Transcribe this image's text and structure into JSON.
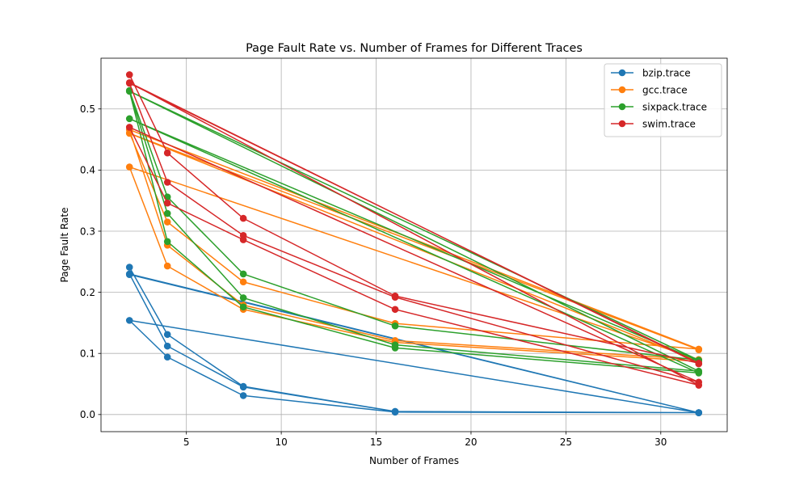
{
  "chart_data": {
    "type": "line",
    "title": "Page Fault Rate vs. Number of Frames for Different Traces",
    "xlabel": "Number of Frames",
    "ylabel": "Page Fault Rate",
    "xlim": [
      0.5,
      33.5
    ],
    "ylim": [
      -0.028,
      0.583
    ],
    "xticks": [
      5,
      10,
      15,
      20,
      25,
      30
    ],
    "xtick_labels": [
      "5",
      "10",
      "15",
      "20",
      "25",
      "30"
    ],
    "yticks": [
      0.0,
      0.1,
      0.2,
      0.3,
      0.4,
      0.5
    ],
    "ytick_labels": [
      "0.0",
      "0.1",
      "0.2",
      "0.3",
      "0.4",
      "0.5"
    ],
    "grid": true,
    "legend_position": "top-right",
    "series": [
      {
        "name": "bzip.trace",
        "color": "#1f77b4",
        "x": [
          2,
          4,
          8,
          16,
          32,
          2,
          4,
          8,
          16,
          32,
          2,
          4,
          8,
          16,
          32,
          2,
          32
        ],
        "y": [
          0.241,
          0.131,
          0.046,
          0.005,
          0.003,
          0.23,
          0.112,
          0.045,
          0.005,
          0.003,
          0.154,
          0.094,
          0.031,
          0.004,
          0.003,
          0.229,
          0.003
        ]
      },
      {
        "name": "gcc.trace",
        "color": "#ff7f0e",
        "x": [
          2,
          4,
          8,
          16,
          32,
          2,
          4,
          8,
          16,
          32,
          2,
          4,
          8,
          16,
          32,
          2,
          32
        ],
        "y": [
          0.461,
          0.315,
          0.217,
          0.149,
          0.107,
          0.466,
          0.277,
          0.179,
          0.121,
          0.09,
          0.405,
          0.243,
          0.172,
          0.118,
          0.087,
          0.46,
          0.106
        ]
      },
      {
        "name": "sixpack.trace",
        "color": "#2ca02c",
        "x": [
          2,
          4,
          8,
          16,
          32,
          2,
          4,
          8,
          16,
          32,
          2,
          4,
          8,
          16,
          32,
          2,
          32
        ],
        "y": [
          0.53,
          0.356,
          0.23,
          0.145,
          0.089,
          0.529,
          0.329,
          0.191,
          0.114,
          0.071,
          0.529,
          0.283,
          0.176,
          0.109,
          0.068,
          0.484,
          0.088
        ]
      },
      {
        "name": "swim.trace",
        "color": "#d62728",
        "x": [
          2,
          4,
          8,
          16,
          32,
          2,
          4,
          8,
          16,
          32,
          2,
          4,
          8,
          16,
          32,
          2,
          32
        ],
        "y": [
          0.556,
          0.428,
          0.321,
          0.194,
          0.084,
          0.542,
          0.38,
          0.293,
          0.192,
          0.053,
          0.47,
          0.346,
          0.286,
          0.172,
          0.048,
          0.543,
          0.083
        ]
      }
    ]
  }
}
